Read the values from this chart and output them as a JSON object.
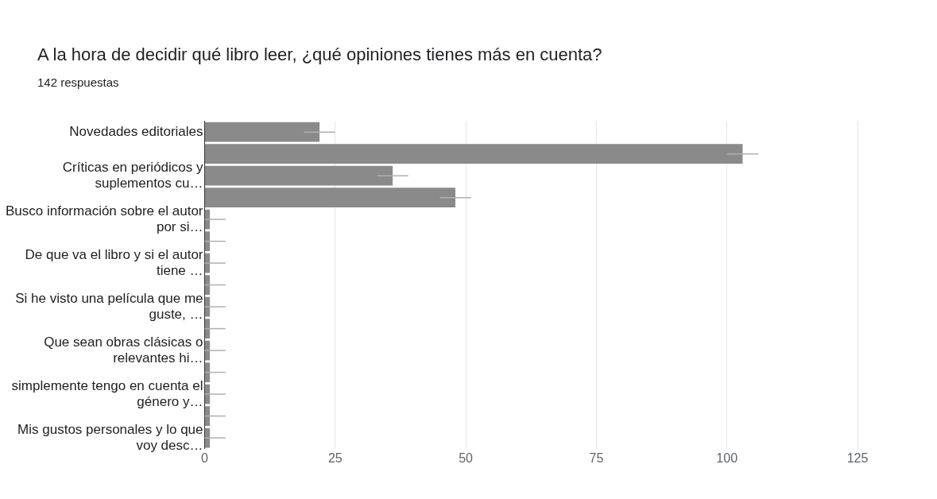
{
  "chart_data": {
    "type": "bar",
    "orientation": "horizontal",
    "title": "A la hora de decidir qué libro leer, ¿qué opiniones tienes más en cuenta?",
    "subtitle": "142 respuestas",
    "categories": [
      "Novedades editoriales",
      null,
      "Críticas en periódicos y suplementos cu…",
      null,
      "Busco información sobre el autor por si…",
      null,
      "De que va el libro y si el autor tiene …",
      null,
      "Si he visto una película que me guste, …",
      null,
      "Que sean obras clásicas o relevantes hi…",
      null,
      "simplemente tengo en cuenta el género y…",
      null,
      "Mis gustos personales y lo que voy desc…"
    ],
    "values": [
      22,
      103,
      36,
      48,
      1,
      1,
      1,
      1,
      1,
      1,
      1,
      1,
      1,
      1,
      1
    ],
    "errors": [
      3,
      3,
      3,
      3,
      [
        0,
        4
      ],
      [
        0,
        4
      ],
      [
        0,
        4
      ],
      [
        0,
        4
      ],
      [
        0,
        4
      ],
      [
        0,
        4
      ],
      [
        0,
        4
      ],
      [
        0,
        4
      ],
      [
        0,
        4
      ],
      [
        0,
        4
      ],
      [
        0,
        4
      ]
    ],
    "color": "#8a8a8a",
    "xlim": [
      0,
      125
    ],
    "xticks": [
      0,
      25,
      50,
      75,
      100,
      125
    ],
    "grid": "x",
    "legend": false
  }
}
